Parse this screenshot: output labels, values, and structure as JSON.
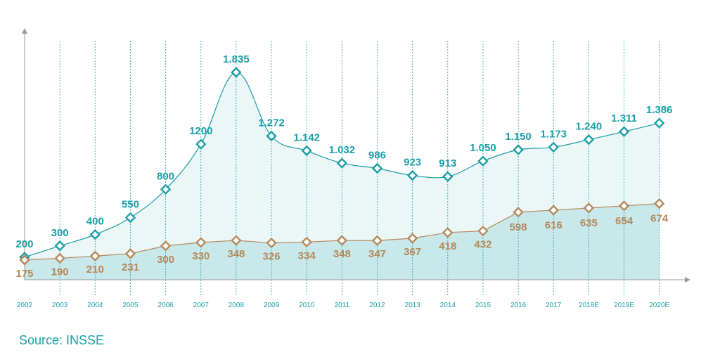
{
  "chart_data": {
    "type": "area",
    "categories": [
      "2002",
      "2003",
      "2004",
      "2005",
      "2006",
      "2007",
      "2008",
      "2009",
      "2010",
      "2011",
      "2012",
      "2013",
      "2014",
      "2015",
      "2016",
      "2017",
      "2018E",
      "2019E",
      "2020E"
    ],
    "series": [
      {
        "name": "upper",
        "values": [
          200,
          300,
          400,
          550,
          800,
          1200,
          1835,
          1272,
          1142,
          1032,
          986,
          923,
          913,
          1050,
          1150,
          1173,
          1240,
          1311,
          1386
        ],
        "labels": [
          "200",
          "300",
          "400",
          "550",
          "800",
          "1200",
          "1.835",
          "1.272",
          "1.142",
          "1.032",
          "986",
          "923",
          "913",
          "1.050",
          "1.150",
          "1.173",
          "1.240",
          "1.311",
          "1.386"
        ]
      },
      {
        "name": "lower",
        "values": [
          175,
          190,
          210,
          231,
          300,
          330,
          348,
          326,
          334,
          348,
          347,
          367,
          418,
          432,
          598,
          616,
          635,
          654,
          674
        ],
        "labels": [
          "175",
          "190",
          "210",
          "231",
          "300",
          "330",
          "348",
          "326",
          "334",
          "348",
          "347",
          "367",
          "418",
          "432",
          "598",
          "616",
          "635",
          "654",
          "674"
        ]
      }
    ],
    "ylim": [
      0,
      1835
    ],
    "grid": true,
    "title": "",
    "xlabel": "",
    "ylabel": ""
  },
  "source": "Source: INSSE",
  "colors": {
    "teal": "#1a9ea6",
    "teal_fill": "#ebf6f7",
    "lower_fill": "#c9e8ea",
    "brown": "#b4895c",
    "axis": "#9a9a9a"
  }
}
